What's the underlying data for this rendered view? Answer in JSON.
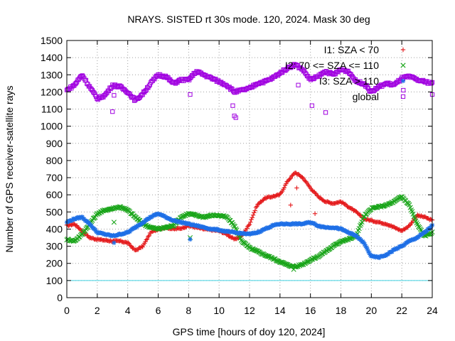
{
  "chart_data": {
    "type": "scatter",
    "title": "NRAYS. SISTED rt 30s mode. 120, 2024. Mask 30 deg",
    "xlabel": "GPS time [hours of doy 120, 2024]",
    "ylabel": "Number of GPS receiver-satellite rays",
    "xlim": [
      0,
      24
    ],
    "ylim": [
      0,
      1500
    ],
    "xticks": [
      0,
      2,
      4,
      6,
      8,
      10,
      12,
      14,
      16,
      18,
      20,
      22,
      24
    ],
    "yticks": [
      0,
      100,
      200,
      300,
      400,
      500,
      600,
      700,
      800,
      900,
      1000,
      1100,
      1200,
      1300,
      1400,
      1500
    ],
    "grid": true,
    "legend_position": "top-right",
    "threshold_line": {
      "y": 100,
      "color": "#40d0e0"
    },
    "series": [
      {
        "name": "I1: SZA < 70",
        "color": "#e41a1c",
        "marker": "+",
        "x": [
          0,
          0.5,
          1,
          1.5,
          2,
          2.5,
          3,
          3.5,
          4,
          4.5,
          5,
          5.5,
          6,
          6.5,
          7,
          7.5,
          8,
          8.5,
          9,
          9.5,
          10,
          10.5,
          11,
          11.5,
          12,
          12.5,
          13,
          13.5,
          14,
          14.5,
          15,
          15.5,
          16,
          16.5,
          17,
          17.5,
          18,
          18.5,
          19,
          19.5,
          20,
          20.5,
          21,
          21.5,
          22,
          22.5,
          23,
          23.5,
          24
        ],
        "y": [
          420,
          430,
          390,
          350,
          340,
          335,
          330,
          330,
          320,
          275,
          300,
          380,
          400,
          410,
          400,
          405,
          420,
          410,
          400,
          395,
          390,
          370,
          340,
          360,
          430,
          540,
          580,
          590,
          600,
          680,
          730,
          700,
          640,
          590,
          560,
          550,
          560,
          530,
          500,
          460,
          450,
          440,
          430,
          410,
          390,
          420,
          480,
          470,
          450
        ]
      },
      {
        "name": "I2: 70 <= SZA <= 110",
        "color": "#1aa51a",
        "marker": "x",
        "x": [
          0,
          0.5,
          1,
          1.5,
          2,
          2.5,
          3,
          3.5,
          4,
          4.5,
          5,
          5.5,
          6,
          6.5,
          7,
          7.5,
          8,
          8.5,
          9,
          9.5,
          10,
          10.5,
          11,
          11.5,
          12,
          12.5,
          13,
          13.5,
          14,
          14.5,
          15,
          15.5,
          16,
          16.5,
          17,
          17.5,
          18,
          18.5,
          19,
          19.5,
          20,
          20.5,
          21,
          21.5,
          22,
          22.5,
          23,
          23.5,
          24
        ],
        "y": [
          340,
          330,
          370,
          430,
          490,
          510,
          520,
          530,
          510,
          470,
          430,
          410,
          400,
          410,
          420,
          470,
          490,
          480,
          470,
          480,
          480,
          470,
          420,
          330,
          290,
          270,
          250,
          230,
          210,
          190,
          180,
          195,
          220,
          240,
          270,
          300,
          330,
          340,
          360,
          470,
          520,
          530,
          540,
          560,
          590,
          540,
          430,
          360,
          380
        ]
      },
      {
        "name": "I3: SZA > 110",
        "color": "#1e6fe6",
        "marker": "*",
        "x": [
          0,
          0.5,
          1,
          1.5,
          2,
          2.5,
          3,
          3.5,
          4,
          4.5,
          5,
          5.5,
          6,
          6.5,
          7,
          7.5,
          8,
          8.5,
          9,
          9.5,
          10,
          10.5,
          11,
          11.5,
          12,
          12.5,
          13,
          13.5,
          14,
          14.5,
          15,
          15.5,
          16,
          16.5,
          17,
          17.5,
          18,
          18.5,
          19,
          19.5,
          20,
          20.5,
          21,
          21.5,
          22,
          22.5,
          23,
          23.5,
          24
        ],
        "y": [
          440,
          460,
          470,
          430,
          380,
          370,
          360,
          370,
          380,
          410,
          440,
          470,
          490,
          470,
          450,
          440,
          430,
          420,
          410,
          400,
          395,
          385,
          380,
          375,
          370,
          380,
          400,
          420,
          430,
          430,
          430,
          430,
          440,
          420,
          410,
          410,
          400,
          380,
          360,
          320,
          240,
          235,
          250,
          280,
          300,
          330,
          350,
          380,
          420
        ]
      },
      {
        "name": "global",
        "color": "#a000e0",
        "marker": "square",
        "x": [
          0,
          0.5,
          1,
          1.5,
          2,
          2.5,
          3,
          3.5,
          4,
          4.5,
          5,
          5.5,
          6,
          6.5,
          7,
          7.5,
          8,
          8.5,
          9,
          9.5,
          10,
          10.5,
          11,
          11.5,
          12,
          12.5,
          13,
          13.5,
          14,
          14.5,
          15,
          15.5,
          16,
          16.5,
          17,
          17.5,
          18,
          18.5,
          19,
          19.5,
          20,
          20.5,
          21,
          21.5,
          22,
          22.5,
          23,
          23.5,
          24
        ],
        "y": [
          1210,
          1240,
          1300,
          1230,
          1160,
          1180,
          1240,
          1230,
          1200,
          1150,
          1190,
          1250,
          1300,
          1290,
          1250,
          1270,
          1270,
          1320,
          1300,
          1280,
          1260,
          1240,
          1200,
          1210,
          1220,
          1250,
          1260,
          1280,
          1310,
          1340,
          1360,
          1330,
          1270,
          1290,
          1320,
          1300,
          1330,
          1320,
          1260,
          1250,
          1200,
          1230,
          1250,
          1240,
          1280,
          1290,
          1270,
          1260,
          1250
        ]
      }
    ],
    "outliers": [
      {
        "series": "I1: SZA < 70",
        "x": [
          14.7,
          15.1,
          16.3
        ],
        "y": [
          540,
          640,
          490
        ]
      },
      {
        "series": "I2: 70 <= SZA <= 110",
        "x": [
          3.1,
          8.1,
          14.9
        ],
        "y": [
          440,
          350,
          165
        ]
      },
      {
        "series": "I3: SZA > 110",
        "x": [
          3.1,
          8.1
        ],
        "y": [
          320,
          340
        ]
      },
      {
        "series": "global",
        "x": [
          3.0,
          3.1,
          8.1,
          10.9,
          11.0,
          11.1,
          15.2,
          16.1,
          17.0,
          22.1,
          24.0
        ],
        "y": [
          1085,
          1180,
          1185,
          1120,
          1060,
          1050,
          1240,
          1120,
          1080,
          1210,
          1185
        ]
      }
    ]
  }
}
